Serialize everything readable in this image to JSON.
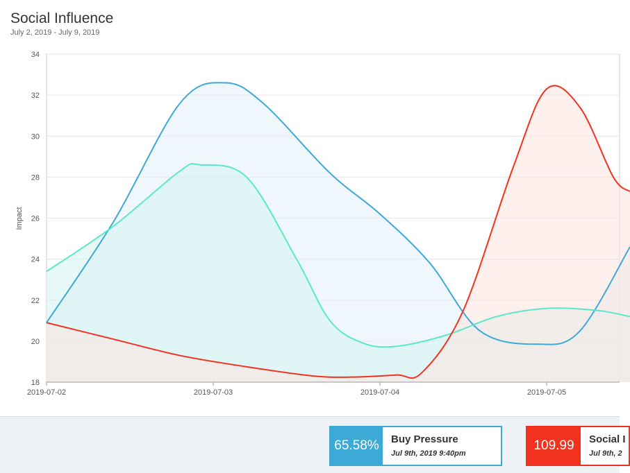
{
  "header": {
    "title": "Social Influence",
    "subtitle": "July 2, 2019 - July 9, 2019"
  },
  "chart_data": {
    "type": "area",
    "ylabel": "Impact",
    "xlabel": "",
    "ylim": [
      18,
      34
    ],
    "yticks": [
      18,
      20,
      22,
      24,
      26,
      28,
      30,
      32,
      34
    ],
    "x_tick_labels": [
      "2019-07-02",
      "2019-07-03",
      "2019-07-04",
      "2019-07-05"
    ],
    "grid": true,
    "series": [
      {
        "color": "#3da9d6",
        "fill": "#e4f1fa",
        "points": [
          [
            0,
            20.9
          ],
          [
            0.4,
            25.8
          ],
          [
            0.8,
            31.6
          ],
          [
            1.07,
            32.6
          ],
          [
            1.3,
            31.6
          ],
          [
            1.7,
            28.2
          ],
          [
            2.0,
            26.2
          ],
          [
            2.3,
            23.8
          ],
          [
            2.6,
            20.5
          ],
          [
            2.95,
            19.85
          ],
          [
            3.2,
            20.5
          ],
          [
            3.5,
            24.6
          ]
        ]
      },
      {
        "color": "#5ce8c8",
        "fill": "#d4f4f0",
        "points": [
          [
            0,
            23.4
          ],
          [
            0.4,
            25.6
          ],
          [
            0.8,
            28.3
          ],
          [
            0.92,
            28.6
          ],
          [
            1.2,
            28.0
          ],
          [
            1.5,
            24.0
          ],
          [
            1.7,
            21.0
          ],
          [
            1.9,
            19.9
          ],
          [
            2.1,
            19.75
          ],
          [
            2.4,
            20.3
          ],
          [
            2.7,
            21.2
          ],
          [
            3.0,
            21.6
          ],
          [
            3.3,
            21.5
          ],
          [
            3.5,
            21.2
          ]
        ]
      },
      {
        "color": "#f1321f",
        "fill": "#fde3df",
        "points": [
          [
            0,
            20.9
          ],
          [
            0.4,
            20.1
          ],
          [
            0.8,
            19.3
          ],
          [
            1.2,
            18.75
          ],
          [
            1.6,
            18.3
          ],
          [
            1.85,
            18.25
          ],
          [
            2.1,
            18.35
          ],
          [
            2.25,
            18.45
          ],
          [
            2.5,
            21.5
          ],
          [
            2.8,
            28.5
          ],
          [
            3.0,
            32.3
          ],
          [
            3.2,
            31.4
          ],
          [
            3.4,
            28.0
          ],
          [
            3.5,
            27.3
          ]
        ]
      }
    ]
  },
  "footer": {
    "cards": [
      {
        "value": "65.58%",
        "label": "Buy Pressure",
        "timestamp": "Jul 9th, 2019 9:40pm",
        "color": "#3da9d6"
      },
      {
        "value": "109.99",
        "label": "Social I",
        "timestamp": "Jul 9th, 2",
        "color": "#f1321f"
      }
    ]
  }
}
